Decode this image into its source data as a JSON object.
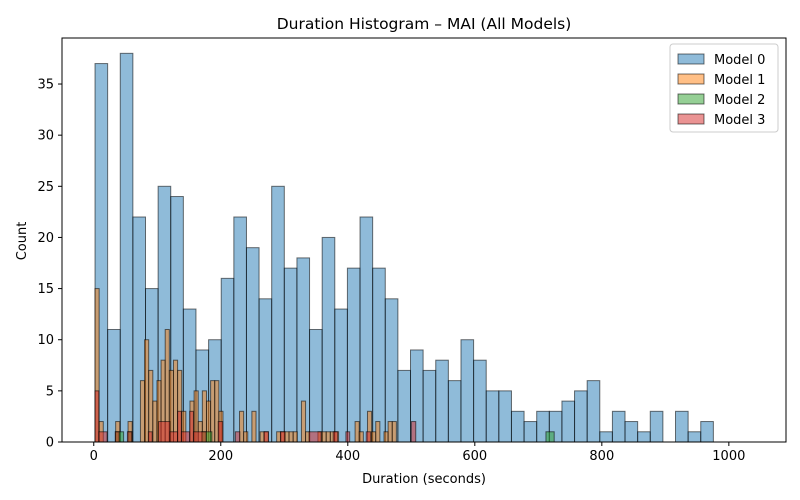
{
  "chart_data": {
    "type": "histogram",
    "title": "Duration Histogram – MAI (All Models)",
    "xlabel": "Duration (seconds)",
    "ylabel": "Count",
    "xlim": [
      -50,
      1090
    ],
    "ylim": [
      0,
      39.5
    ],
    "x_ticks": [
      0,
      200,
      400,
      600,
      800,
      1000
    ],
    "y_ticks": [
      0,
      5,
      10,
      15,
      20,
      25,
      30,
      35
    ],
    "grid": false,
    "legend_position": "top-right",
    "series": [
      {
        "name": "Model 0",
        "color": "#1f77b4",
        "bin_start": 2,
        "bin_width": 19.87,
        "counts": [
          37,
          11,
          38,
          22,
          15,
          25,
          24,
          13,
          9,
          10,
          16,
          22,
          19,
          14,
          25,
          17,
          18,
          11,
          20,
          13,
          17,
          22,
          17,
          14,
          7,
          9,
          7,
          8,
          6,
          10,
          8,
          5,
          5,
          3,
          2,
          3,
          3,
          4,
          5,
          6,
          1,
          3,
          2,
          1,
          3,
          0,
          3,
          1,
          2
        ]
      },
      {
        "name": "Model 1",
        "color": "#ff7f0e",
        "bin_start": 2,
        "bin_width": 6.5,
        "counts": [
          15,
          2,
          0,
          0,
          0,
          2,
          0,
          0,
          2,
          0,
          0,
          6,
          10,
          7,
          4,
          6,
          8,
          11,
          7,
          8,
          7,
          3,
          0,
          4,
          5,
          2,
          5,
          4,
          6,
          6,
          3,
          0,
          0,
          0,
          0,
          3,
          1,
          0,
          3,
          0,
          1,
          1,
          0,
          0,
          1,
          1,
          1,
          1,
          1,
          0,
          4,
          1,
          0,
          0,
          1,
          1,
          1,
          1,
          1,
          0,
          0,
          0,
          0,
          2,
          1,
          0,
          3,
          1,
          2,
          0,
          1,
          2,
          2,
          0,
          0,
          0,
          0,
          0,
          0
        ]
      },
      {
        "name": "Model 2",
        "color": "#2ca02c",
        "bars": [
          {
            "x0": 34,
            "x1": 47,
            "count": 1
          },
          {
            "x0": 54,
            "x1": 60,
            "count": 1
          },
          {
            "x0": 170,
            "x1": 186,
            "count": 1
          },
          {
            "x0": 712,
            "x1": 725,
            "count": 1
          }
        ]
      },
      {
        "name": "Model 3",
        "color": "#d62728",
        "bars": [
          {
            "x0": 2,
            "x1": 8,
            "count": 5
          },
          {
            "x0": 8,
            "x1": 21,
            "count": 1
          },
          {
            "x0": 34,
            "x1": 40,
            "count": 1
          },
          {
            "x0": 53,
            "x1": 60,
            "count": 1
          },
          {
            "x0": 86,
            "x1": 92,
            "count": 1
          },
          {
            "x0": 102,
            "x1": 120,
            "count": 2
          },
          {
            "x0": 120,
            "x1": 132,
            "count": 1
          },
          {
            "x0": 132,
            "x1": 138,
            "count": 3
          },
          {
            "x0": 138,
            "x1": 151,
            "count": 1
          },
          {
            "x0": 151,
            "x1": 157,
            "count": 3
          },
          {
            "x0": 157,
            "x1": 177,
            "count": 1
          },
          {
            "x0": 196,
            "x1": 203,
            "count": 2
          },
          {
            "x0": 223,
            "x1": 230,
            "count": 1
          },
          {
            "x0": 268,
            "x1": 275,
            "count": 1
          },
          {
            "x0": 294,
            "x1": 301,
            "count": 1
          },
          {
            "x0": 339,
            "x1": 358,
            "count": 1
          },
          {
            "x0": 377,
            "x1": 384,
            "count": 1
          },
          {
            "x0": 397,
            "x1": 403,
            "count": 1
          },
          {
            "x0": 429,
            "x1": 436,
            "count": 1
          },
          {
            "x0": 500,
            "x1": 507,
            "count": 2
          }
        ]
      }
    ]
  }
}
